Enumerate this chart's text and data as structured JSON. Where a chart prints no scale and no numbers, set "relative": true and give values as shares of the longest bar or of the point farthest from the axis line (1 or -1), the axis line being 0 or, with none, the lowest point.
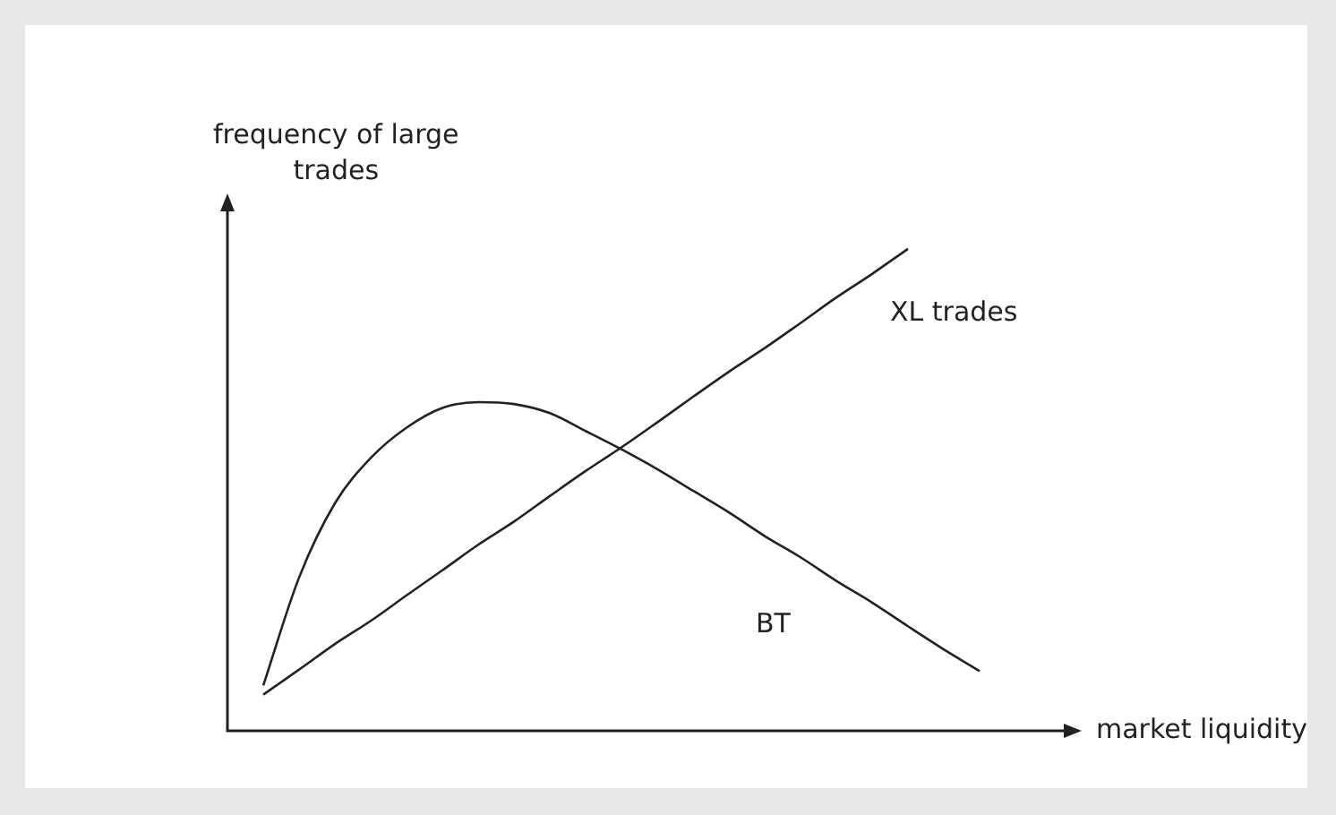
{
  "chart_data": {
    "type": "line",
    "xlabel": "market liquidity",
    "ylabel": "frequency of large trades",
    "relative": true,
    "legend": false,
    "marker": "none",
    "line_style": "solid",
    "categories": [
      null,
      null,
      null,
      null,
      null,
      null,
      null,
      null,
      null,
      null,
      null,
      null,
      null,
      null,
      null,
      null,
      null,
      null,
      null,
      null,
      null
    ],
    "series": [
      {
        "name": "XL trades",
        "color": "#222222",
        "values": [
          0.075,
          0.127,
          0.18,
          0.228,
          0.281,
          0.333,
          0.386,
          0.434,
          0.487,
          0.539,
          0.588,
          0.64,
          0.693,
          0.745,
          0.794,
          0.846,
          0.899,
          0.948,
          1,
          null,
          null
        ]
      },
      {
        "name": "BT",
        "color": "#222222",
        "values": [
          0.094,
          0.318,
          0.472,
          0.566,
          0.629,
          0.67,
          0.682,
          0.678,
          0.659,
          0.622,
          0.584,
          0.543,
          0.498,
          0.453,
          0.404,
          0.36,
          0.311,
          0.266,
          0.217,
          0.169,
          0.124
        ]
      }
    ]
  }
}
